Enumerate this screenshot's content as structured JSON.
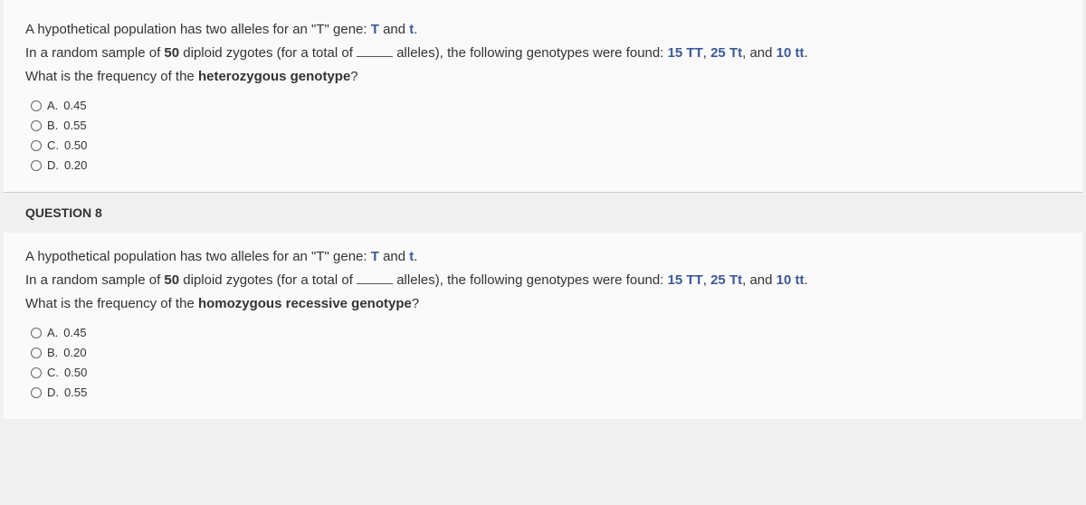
{
  "q7": {
    "stem": {
      "line1_a": "A hypothetical population has two alleles for an \"T\" gene: ",
      "g1": "T",
      "line1_b": " and ",
      "g2": "t",
      "line1_c": ".",
      "line2_a": "In a random sample of ",
      "bold50": "50",
      "line2_b": " diploid zygotes (for a total of ",
      "line2_c": " alleles), the following genotypes were found: ",
      "gtype1": "15 TT",
      "sep1": ", ",
      "gtype2": "25 Tt",
      "sep2": ", and ",
      "gtype3": "10 tt",
      "line2_d": ".",
      "line3_a": "What is the frequency of the ",
      "line3_b": "heterozygous genotype",
      "line3_c": "?"
    },
    "options": [
      {
        "label": "A.",
        "value": "0.45"
      },
      {
        "label": "B.",
        "value": "0.55"
      },
      {
        "label": "C.",
        "value": "0.50"
      },
      {
        "label": "D.",
        "value": "0.20"
      }
    ]
  },
  "q8": {
    "heading": "QUESTION 8",
    "stem": {
      "line1_a": "A hypothetical population has two alleles for an \"T\" gene: ",
      "g1": "T",
      "line1_b": " and ",
      "g2": "t",
      "line1_c": ".",
      "line2_a": "In a random sample of ",
      "bold50": "50",
      "line2_b": " diploid zygotes (for a total of ",
      "line2_c": " alleles), the following genotypes were found: ",
      "gtype1": "15 TT",
      "sep1": ", ",
      "gtype2": "25 Tt",
      "sep2": ", and ",
      "gtype3": "10 tt",
      "line2_d": ".",
      "line3_a": "What is the frequency of the ",
      "line3_b": "homozygous recessive genotype",
      "line3_c": "?"
    },
    "options": [
      {
        "label": "A.",
        "value": "0.45"
      },
      {
        "label": "B.",
        "value": "0.20"
      },
      {
        "label": "C.",
        "value": "0.50"
      },
      {
        "label": "D.",
        "value": "0.55"
      }
    ]
  },
  "colors": {
    "accent": "#3b5998",
    "text": "#333333",
    "background": "#f0f0f0"
  }
}
